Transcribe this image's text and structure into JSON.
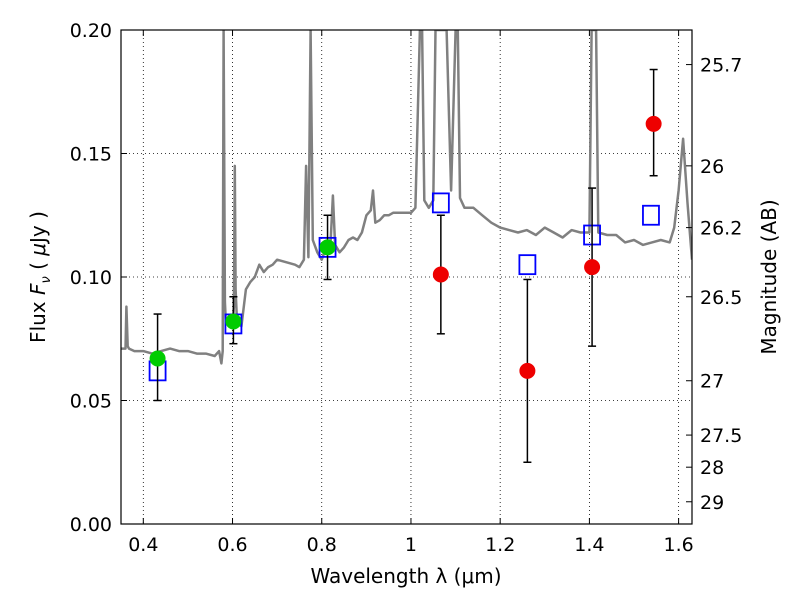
{
  "chart_data": {
    "type": "scatter",
    "xlabel": "Wavelength  λ (μm)",
    "ylabel": "Flux  F_ν  ( μJy )",
    "ylabel_parts": {
      "pre": "Flux  ",
      "sym": "F",
      "sub": "ν",
      "mid": "  ( ",
      "mu": "μ",
      "post": "Jy )"
    },
    "y2label": "Magnitude (AB)",
    "xlim": [
      0.35,
      1.63
    ],
    "ylim": [
      0.0,
      0.2
    ],
    "grid": true,
    "x_ticks": [
      {
        "v": 0.4,
        "label": "0.4"
      },
      {
        "v": 0.6,
        "label": "0.6"
      },
      {
        "v": 0.8,
        "label": "0.8"
      },
      {
        "v": 1.0,
        "label": "1"
      },
      {
        "v": 1.2,
        "label": "1.2"
      },
      {
        "v": 1.4,
        "label": "1.4"
      },
      {
        "v": 1.6,
        "label": "1.6"
      }
    ],
    "y_ticks": [
      {
        "v": 0.0,
        "label": "0.00"
      },
      {
        "v": 0.05,
        "label": "0.05"
      },
      {
        "v": 0.1,
        "label": "0.10"
      },
      {
        "v": 0.15,
        "label": "0.15"
      },
      {
        "v": 0.2,
        "label": "0.20"
      }
    ],
    "y2_ticks": [
      {
        "flux": 0.186,
        "label": "25.7"
      },
      {
        "flux": 0.145,
        "label": "26"
      },
      {
        "flux": 0.12,
        "label": "26.2"
      },
      {
        "flux": 0.092,
        "label": "26.5"
      },
      {
        "flux": 0.058,
        "label": "27"
      },
      {
        "flux": 0.036,
        "label": "27.5"
      },
      {
        "flux": 0.023,
        "label": "28"
      },
      {
        "flux": 0.009,
        "label": "29"
      }
    ],
    "series": [
      {
        "kind": "line",
        "color": "#808080",
        "x": [
          0.35,
          0.36,
          0.362,
          0.365,
          0.368,
          0.38,
          0.4,
          0.42,
          0.44,
          0.46,
          0.48,
          0.5,
          0.52,
          0.54,
          0.56,
          0.57,
          0.575,
          0.578,
          0.58,
          0.583,
          0.585,
          0.588,
          0.59,
          0.595,
          0.6,
          0.603,
          0.605,
          0.607,
          0.61,
          0.62,
          0.63,
          0.64,
          0.65,
          0.66,
          0.67,
          0.68,
          0.69,
          0.7,
          0.72,
          0.74,
          0.75,
          0.76,
          0.765,
          0.77,
          0.775,
          0.78,
          0.79,
          0.8,
          0.81,
          0.82,
          0.825,
          0.83,
          0.84,
          0.85,
          0.86,
          0.87,
          0.88,
          0.89,
          0.9,
          0.91,
          0.915,
          0.92,
          0.93,
          0.94,
          0.95,
          0.96,
          0.98,
          1.0,
          1.01,
          1.02,
          1.025,
          1.03,
          1.04,
          1.05,
          1.055,
          1.06,
          1.07,
          1.08,
          1.09,
          1.1,
          1.105,
          1.11,
          1.12,
          1.14,
          1.16,
          1.18,
          1.2,
          1.22,
          1.24,
          1.26,
          1.28,
          1.3,
          1.32,
          1.34,
          1.36,
          1.38,
          1.4,
          1.405,
          1.41,
          1.415,
          1.42,
          1.44,
          1.46,
          1.48,
          1.5,
          1.52,
          1.54,
          1.56,
          1.58,
          1.59,
          1.6,
          1.61,
          1.62,
          1.63
        ],
        "y": [
          0.071,
          0.071,
          0.088,
          0.072,
          0.071,
          0.07,
          0.07,
          0.069,
          0.07,
          0.071,
          0.07,
          0.07,
          0.069,
          0.069,
          0.068,
          0.07,
          0.065,
          0.07,
          0.2,
          0.09,
          0.082,
          0.083,
          0.082,
          0.08,
          0.081,
          0.088,
          0.145,
          0.095,
          0.082,
          0.08,
          0.095,
          0.098,
          0.1,
          0.105,
          0.102,
          0.104,
          0.105,
          0.107,
          0.106,
          0.105,
          0.104,
          0.107,
          0.145,
          0.108,
          0.2,
          0.115,
          0.11,
          0.107,
          0.112,
          0.115,
          0.133,
          0.113,
          0.11,
          0.112,
          0.115,
          0.116,
          0.115,
          0.118,
          0.125,
          0.127,
          0.135,
          0.122,
          0.123,
          0.125,
          0.125,
          0.126,
          0.126,
          0.126,
          0.128,
          0.2,
          0.2,
          0.131,
          0.128,
          0.131,
          0.2,
          0.2,
          0.2,
          0.2,
          0.135,
          0.2,
          0.2,
          0.132,
          0.128,
          0.128,
          0.125,
          0.122,
          0.12,
          0.119,
          0.118,
          0.119,
          0.117,
          0.12,
          0.118,
          0.116,
          0.119,
          0.118,
          0.118,
          0.2,
          0.2,
          0.2,
          0.118,
          0.117,
          0.117,
          0.114,
          0.115,
          0.113,
          0.114,
          0.115,
          0.114,
          0.12,
          0.135,
          0.156,
          0.13,
          0.107
        ]
      },
      {
        "kind": "square",
        "color": "#0000ff",
        "x": [
          0.432,
          0.602,
          0.813,
          1.067,
          1.261,
          1.406,
          1.538
        ],
        "y": [
          0.062,
          0.081,
          0.112,
          0.13,
          0.105,
          0.117,
          0.125
        ]
      },
      {
        "kind": "circle",
        "color": "#00cc00",
        "x": [
          0.432,
          0.602,
          0.813
        ],
        "y": [
          0.067,
          0.082,
          0.112
        ],
        "yerr_low": [
          0.017,
          0.009,
          0.013
        ],
        "yerr_high": [
          0.018,
          0.01,
          0.013
        ]
      },
      {
        "kind": "circle",
        "color": "#ee0000",
        "x": [
          1.067,
          1.261,
          1.406,
          1.544
        ],
        "y": [
          0.101,
          0.062,
          0.104,
          0.162
        ],
        "yerr_low": [
          0.024,
          0.037,
          0.032,
          0.021
        ],
        "yerr_high": [
          0.024,
          0.037,
          0.032,
          0.022
        ]
      }
    ]
  }
}
